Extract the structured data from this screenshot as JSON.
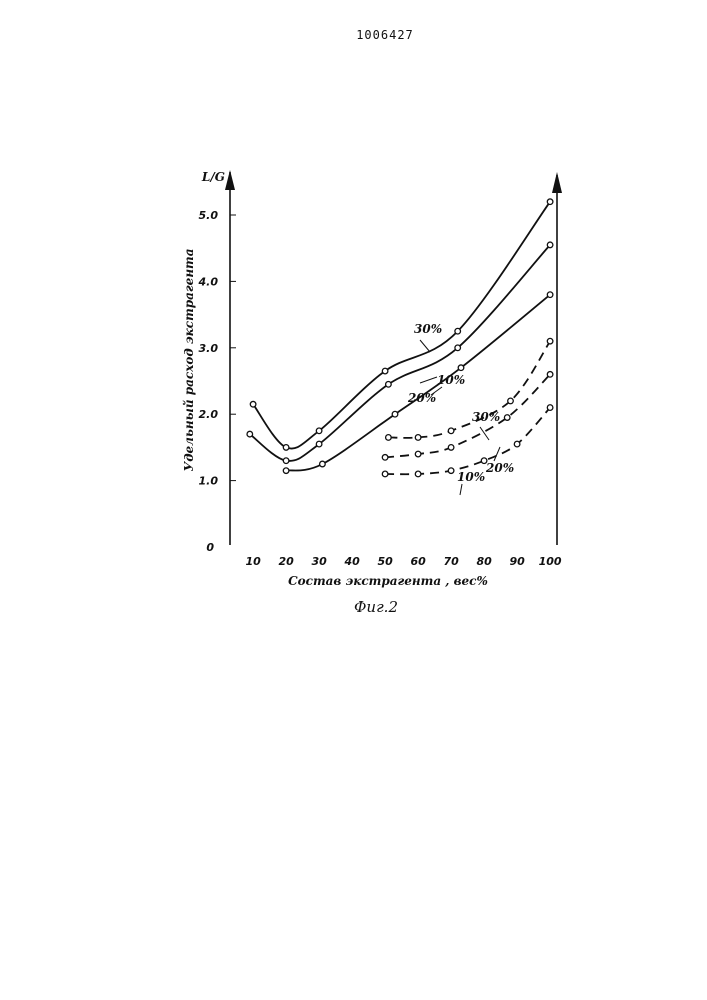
{
  "header": {
    "patent_number": "1006427"
  },
  "chart_data": {
    "type": "line",
    "caption": "Фиг.2",
    "xlabel": "Состав экстрагента , вес%",
    "ylabel": "Удельный расход экстрагента",
    "ylabel_top": "L/G",
    "x_ticks": [
      "10",
      "20",
      "30",
      "40",
      "50",
      "60",
      "70",
      "80",
      "90",
      "100"
    ],
    "y_ticks": [
      "1.0",
      "2.0",
      "3.0",
      "4.0",
      "5.0"
    ],
    "origin_label": "0",
    "xlim": [
      5,
      100
    ],
    "ylim": [
      0,
      5.8
    ],
    "grid": false,
    "series": [
      {
        "name": "30%",
        "style": "solid",
        "x": [
          10,
          20,
          30,
          50,
          72,
          100
        ],
        "y": [
          2.15,
          1.5,
          1.75,
          2.65,
          3.25,
          5.2
        ]
      },
      {
        "name": "10%",
        "style": "solid",
        "x": [
          9,
          20,
          30,
          51,
          72,
          100
        ],
        "y": [
          1.7,
          1.3,
          1.55,
          2.45,
          3.0,
          4.55
        ]
      },
      {
        "name": "20%",
        "style": "solid",
        "x": [
          20,
          31,
          53,
          73,
          100
        ],
        "y": [
          1.15,
          1.25,
          2.0,
          2.7,
          3.8
        ]
      },
      {
        "name": "30%",
        "style": "dashed",
        "x": [
          51,
          60,
          70,
          88,
          100
        ],
        "y": [
          1.65,
          1.65,
          1.75,
          2.2,
          3.1
        ]
      },
      {
        "name": "20%",
        "style": "dashed",
        "x": [
          50,
          60,
          70,
          87,
          100
        ],
        "y": [
          1.35,
          1.4,
          1.5,
          1.95,
          2.6
        ]
      },
      {
        "name": "10%",
        "style": "dashed",
        "x": [
          50,
          60,
          70,
          80,
          90,
          100
        ],
        "y": [
          1.1,
          1.1,
          1.15,
          1.3,
          1.55,
          2.1
        ]
      }
    ]
  }
}
